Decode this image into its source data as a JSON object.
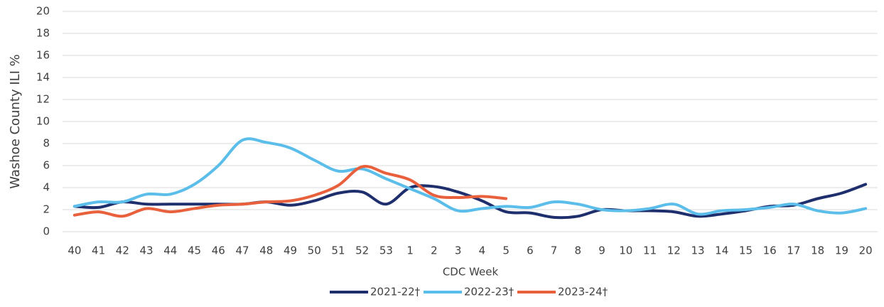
{
  "chart_data": {
    "type": "line",
    "x_label": "CDC Week",
    "y_label": "Washoe County ILI %",
    "categories": [
      "40",
      "41",
      "42",
      "43",
      "44",
      "45",
      "46",
      "47",
      "48",
      "49",
      "50",
      "51",
      "52",
      "53",
      "1",
      "2",
      "3",
      "4",
      "5",
      "6",
      "7",
      "8",
      "9",
      "10",
      "11",
      "12",
      "13",
      "14",
      "15",
      "16",
      "17",
      "18",
      "19",
      "20"
    ],
    "series": [
      {
        "name": "2021-22†",
        "color": "#1f2f6e",
        "values": [
          2.3,
          2.2,
          2.7,
          2.5,
          2.5,
          2.5,
          2.5,
          2.5,
          2.7,
          2.4,
          2.8,
          3.5,
          3.6,
          2.5,
          4.0,
          4.1,
          3.6,
          2.8,
          1.8,
          1.7,
          1.3,
          1.4,
          2.0,
          1.9,
          1.9,
          1.8,
          1.4,
          1.6,
          1.9,
          2.3,
          2.4,
          3.0,
          3.5,
          4.3
        ]
      },
      {
        "name": "2022-23†",
        "color": "#5bbde9",
        "values": [
          2.3,
          2.7,
          2.7,
          3.4,
          3.4,
          4.3,
          6.0,
          8.3,
          8.1,
          7.6,
          6.5,
          5.5,
          5.7,
          4.8,
          3.9,
          3.0,
          1.9,
          2.1,
          2.3,
          2.2,
          2.7,
          2.5,
          2.0,
          1.9,
          2.1,
          2.5,
          1.6,
          1.9,
          2.0,
          2.2,
          2.5,
          1.9,
          1.7,
          2.1
        ]
      },
      {
        "name": "2023-24†",
        "color": "#e8603c",
        "values": [
          1.5,
          1.8,
          1.4,
          2.1,
          1.8,
          2.1,
          2.4,
          2.5,
          2.7,
          2.8,
          3.3,
          4.2,
          5.9,
          5.3,
          4.7,
          3.3,
          3.1,
          3.2,
          3.0,
          null,
          null,
          null,
          null,
          null,
          null,
          null,
          null,
          null,
          null,
          null,
          null,
          null,
          null,
          null
        ]
      }
    ],
    "ylim": [
      0,
      20
    ],
    "yticks": [
      0,
      2,
      4,
      6,
      8,
      10,
      12,
      14,
      16,
      18,
      20
    ],
    "grid": true,
    "legend": "bottom"
  }
}
